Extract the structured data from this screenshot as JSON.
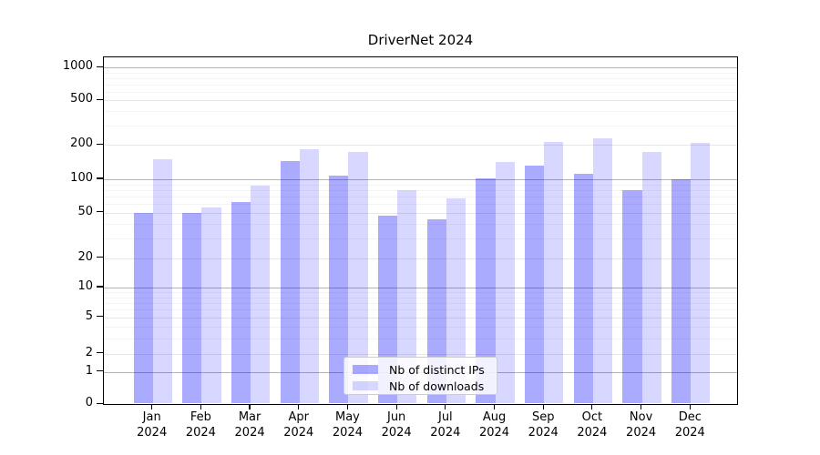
{
  "chart_data": {
    "type": "bar",
    "title": "DriverNet 2024",
    "categories": [
      "Jan",
      "Feb",
      "Mar",
      "Apr",
      "May",
      "Jun",
      "Jul",
      "Aug",
      "Sep",
      "Oct",
      "Nov",
      "Dec"
    ],
    "year_label": "2024",
    "series": [
      {
        "name": "Nb of distinct IPs",
        "color": "rgba(0,0,255,0.335)",
        "values": [
          50,
          50,
          62,
          145,
          108,
          47,
          44,
          102,
          132,
          111,
          80,
          100
        ]
      },
      {
        "name": "Nb of downloads",
        "color": "rgba(0,0,255,0.155)",
        "values": [
          150,
          56,
          88,
          185,
          174,
          80,
          67,
          142,
          212,
          230,
          173,
          209
        ]
      }
    ],
    "xlabel": "",
    "ylabel": "",
    "yscale": "symlog (asinh-like)",
    "y_major_ticks": [
      0,
      1,
      2,
      5,
      10,
      20,
      50,
      100,
      200,
      500,
      1000
    ],
    "ylim": [
      0,
      1250
    ],
    "grid": true,
    "legend_position": "lower center"
  },
  "colors": {
    "bar_distinct_ips": "rgba(0,0,255,0.335)",
    "bar_downloads": "rgba(0,0,255,0.155)",
    "grid_decade": "#b3b3b3",
    "grid_major": "#e7e7e7",
    "grid_minor": "#f3f3f3",
    "spine": "#000000",
    "text": "#000000",
    "legend_border": "#cccccc",
    "background": "#ffffff"
  }
}
